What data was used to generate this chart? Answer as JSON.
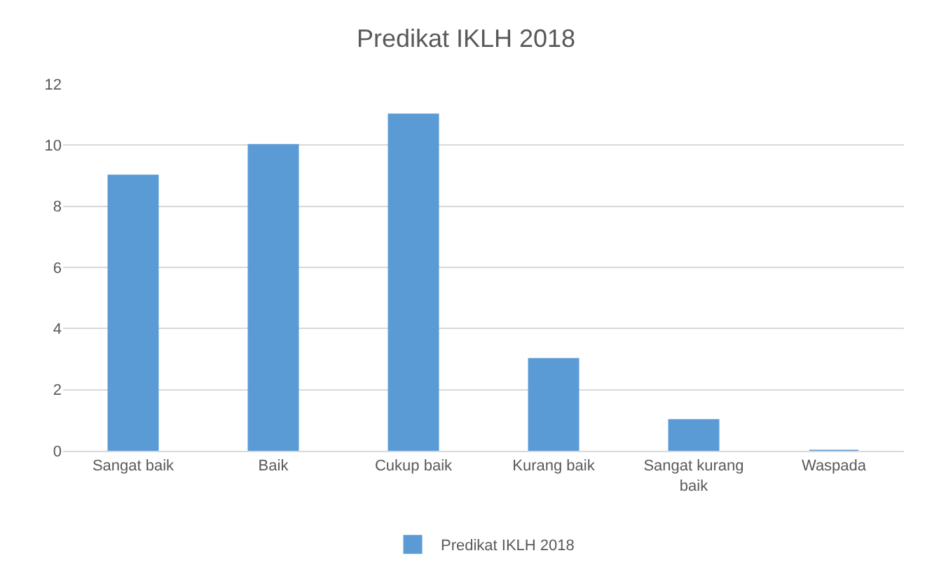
{
  "chart_data": {
    "type": "bar",
    "title": "Predikat IKLH 2018",
    "categories": [
      "Sangat baik",
      "Baik",
      "Cukup baik",
      "Kurang baik",
      "Sangat kurang baik",
      "Waspada"
    ],
    "series": [
      {
        "name": "Predikat IKLH 2018",
        "color": "#5b9bd5",
        "values": [
          9,
          10,
          11,
          3,
          1,
          0
        ]
      }
    ],
    "ylim": [
      0,
      12
    ],
    "yticks": [
      0,
      2,
      4,
      6,
      8,
      10,
      12
    ],
    "grid": "y",
    "legend": "bottom"
  }
}
